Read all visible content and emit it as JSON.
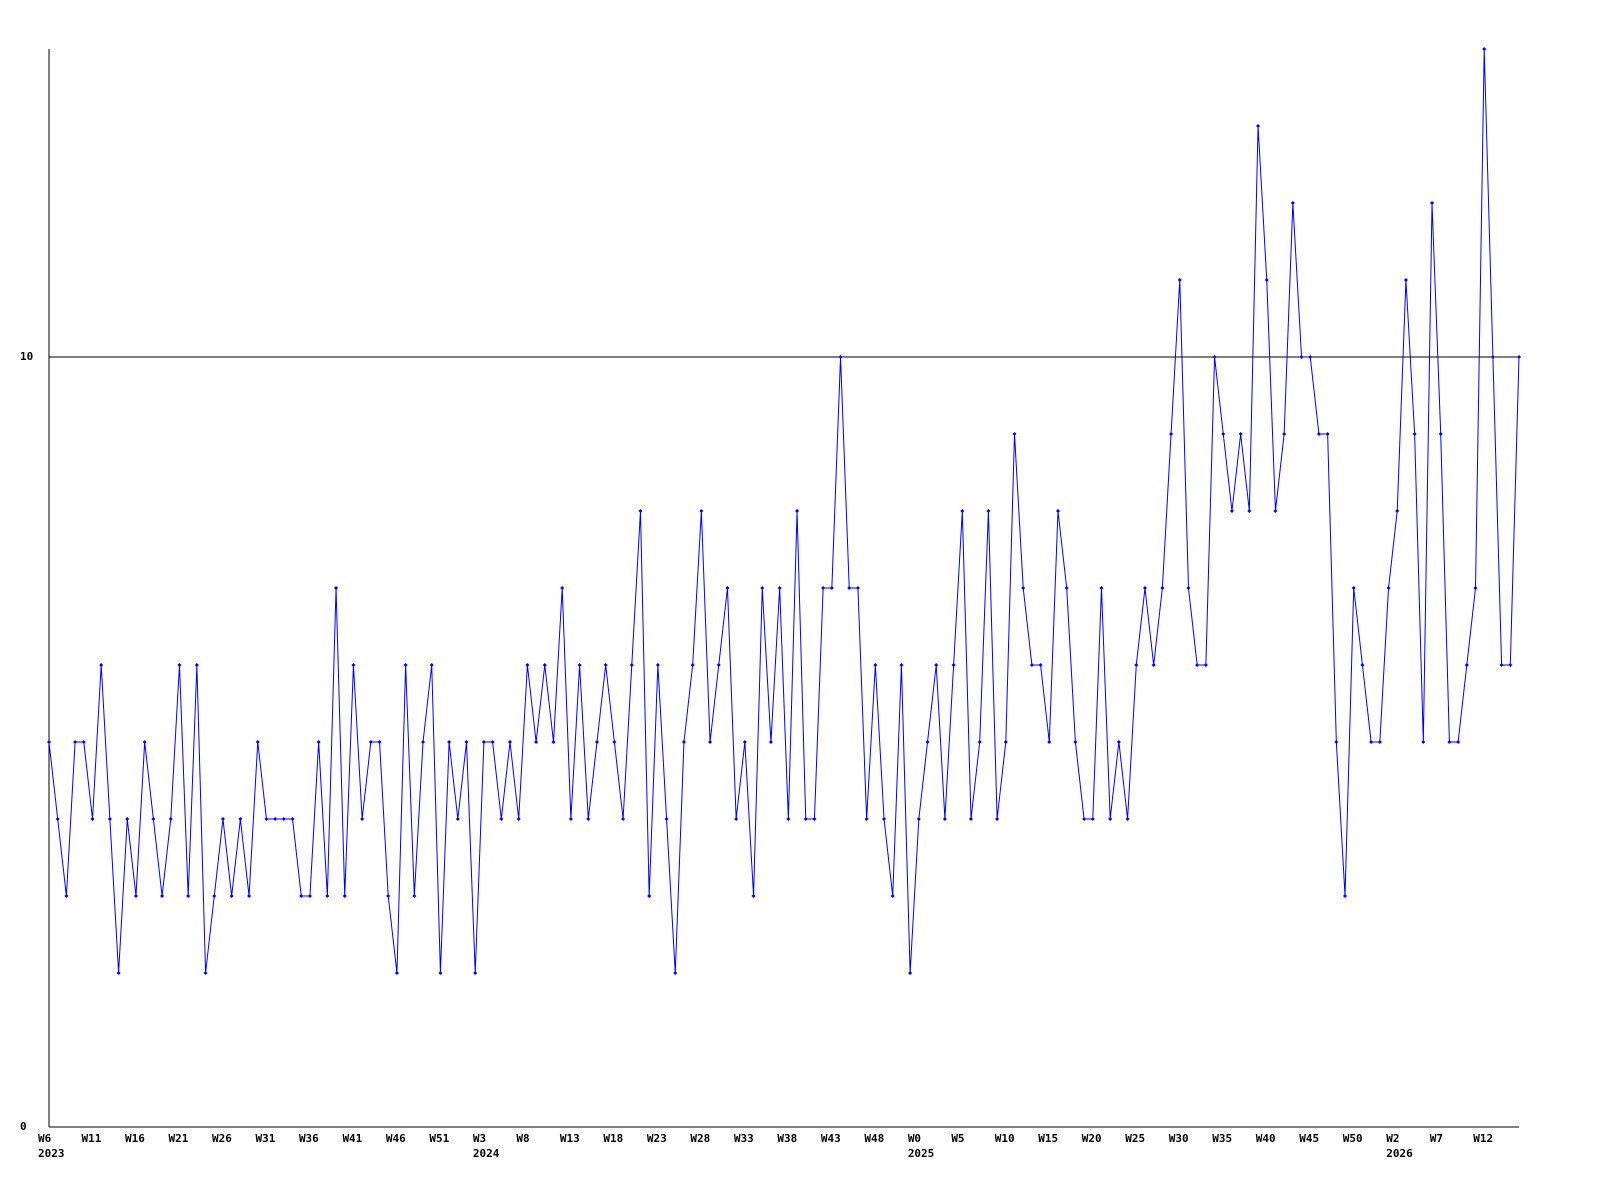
{
  "chart_data": {
    "type": "line",
    "categories": [
      "W6",
      null,
      null,
      null,
      null,
      "W11",
      null,
      null,
      null,
      null,
      "W16",
      null,
      null,
      null,
      null,
      "W21",
      null,
      null,
      null,
      null,
      "W26",
      null,
      null,
      null,
      null,
      "W31",
      null,
      null,
      null,
      null,
      "W36",
      null,
      null,
      null,
      null,
      "W41",
      null,
      null,
      null,
      null,
      "W46",
      null,
      null,
      null,
      null,
      "W51",
      null,
      null,
      null,
      null,
      "W3",
      null,
      null,
      null,
      null,
      "W8",
      null,
      null,
      null,
      null,
      "W13",
      null,
      null,
      null,
      null,
      "W18",
      null,
      null,
      null,
      null,
      "W23",
      null,
      null,
      null,
      null,
      "W28",
      null,
      null,
      null,
      null,
      "W33",
      null,
      null,
      null,
      null,
      "W38",
      null,
      null,
      null,
      null,
      "W43",
      null,
      null,
      null,
      null,
      "W48",
      null,
      null,
      null,
      null,
      "W0",
      null,
      null,
      null,
      null,
      "W5",
      null,
      null,
      null,
      null,
      "W10",
      null,
      null,
      null,
      null,
      "W15",
      null,
      null,
      null,
      null,
      "W20",
      null,
      null,
      null,
      null,
      "W25",
      null,
      null,
      null,
      null,
      "W30",
      null,
      null,
      null,
      null,
      "W35",
      null,
      null,
      null,
      null,
      "W40",
      null,
      null,
      null,
      null,
      "W45",
      null,
      null,
      null,
      null,
      "W50",
      null,
      null,
      null,
      null,
      "W2",
      null,
      null,
      null,
      null,
      "W7",
      null,
      null,
      null,
      null,
      "W12",
      null,
      null,
      null,
      null
    ],
    "years": [
      "2023",
      null,
      null,
      null,
      null,
      null,
      null,
      null,
      null,
      null,
      null,
      null,
      null,
      null,
      null,
      null,
      null,
      null,
      null,
      null,
      null,
      null,
      null,
      null,
      null,
      null,
      null,
      null,
      null,
      null,
      null,
      null,
      null,
      null,
      null,
      null,
      null,
      null,
      null,
      null,
      null,
      null,
      null,
      null,
      null,
      null,
      null,
      null,
      null,
      null,
      "2024",
      null,
      null,
      null,
      null,
      null,
      null,
      null,
      null,
      null,
      null,
      null,
      null,
      null,
      null,
      null,
      null,
      null,
      null,
      null,
      null,
      null,
      null,
      null,
      null,
      null,
      null,
      null,
      null,
      null,
      null,
      null,
      null,
      null,
      null,
      null,
      null,
      null,
      null,
      null,
      null,
      null,
      null,
      null,
      null,
      null,
      null,
      null,
      null,
      null,
      "2025",
      null,
      null,
      null,
      null,
      null,
      null,
      null,
      null,
      null,
      null,
      null,
      null,
      null,
      null,
      null,
      null,
      null,
      null,
      null,
      null,
      null,
      null,
      null,
      null,
      null,
      null,
      null,
      null,
      null,
      null,
      null,
      null,
      null,
      null,
      null,
      null,
      null,
      null,
      null,
      null,
      null,
      null,
      null,
      null,
      null,
      null,
      null,
      null,
      null,
      null,
      null,
      null,
      null,
      null,
      "2026",
      null,
      null,
      null,
      null,
      null,
      null,
      null,
      null,
      null,
      null,
      null,
      null,
      null,
      null
    ],
    "series": [
      {
        "color": "#0000ff",
        "values": [
          5,
          4,
          3,
          5,
          5,
          4,
          6,
          4,
          2,
          4,
          3,
          5,
          4,
          3,
          4,
          6,
          3,
          6,
          2,
          3,
          4,
          3,
          4,
          3,
          5,
          4,
          4,
          4,
          4,
          3,
          3,
          5,
          3,
          7,
          3,
          6,
          4,
          5,
          5,
          3,
          2,
          6,
          3,
          5,
          6,
          2,
          5,
          4,
          5,
          2,
          5,
          5,
          4,
          5,
          4,
          6,
          5,
          6,
          5,
          7,
          4,
          6,
          4,
          5,
          6,
          5,
          4,
          6,
          8,
          3,
          6,
          4,
          2,
          5,
          6,
          8,
          5,
          6,
          7,
          4,
          5,
          3,
          7,
          5,
          7,
          4,
          8,
          4,
          4,
          7,
          7,
          10,
          7,
          7,
          4,
          6,
          4,
          3,
          6,
          2,
          4,
          5,
          6,
          4,
          6,
          8,
          4,
          5,
          8,
          4,
          5,
          9,
          7,
          6,
          6,
          5,
          8,
          7,
          5,
          4,
          4,
          7,
          4,
          5,
          4,
          6,
          7,
          6,
          7,
          9,
          11,
          7,
          6,
          6,
          10,
          9,
          8,
          9,
          8,
          13,
          11,
          8,
          9,
          12,
          10,
          10,
          9,
          9,
          5,
          3,
          7,
          6,
          5,
          5,
          7,
          8,
          11,
          9,
          5,
          12,
          9,
          5,
          5,
          6,
          7,
          14,
          10,
          6,
          6,
          10
        ]
      }
    ],
    "ylim": [
      0,
      14
    ],
    "yticks": [
      0,
      10
    ],
    "grid": true
  }
}
